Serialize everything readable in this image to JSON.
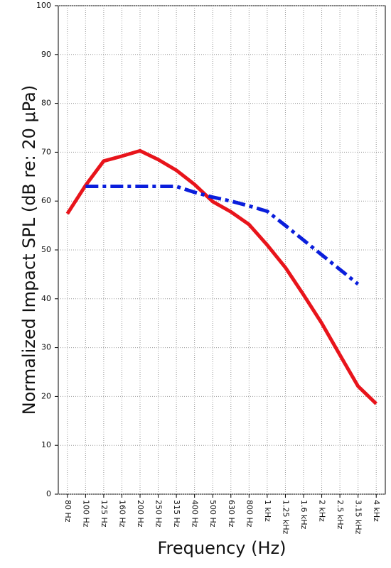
{
  "chart_data": {
    "type": "line",
    "ylabel": "Normalized Impact SPL (dB re: 20 μPa)",
    "xlabel": "Frequency (Hz)",
    "categories": [
      "80 Hz",
      "100 Hz",
      "125 Hz",
      "160 Hz",
      "200 Hz",
      "250 Hz",
      "315 Hz",
      "400 Hz",
      "500 Hz",
      "630 Hz",
      "800 Hz",
      "1 kHz",
      "1.25 kHz",
      "1.6 kHz",
      "2 kHz",
      "2.5 kHz",
      "3.15 kHz",
      "4 kHz"
    ],
    "series": [
      {
        "color": "#e8141b",
        "dash": "solid",
        "values": [
          57.4,
          63.2,
          68.2,
          69.2,
          70.3,
          68.5,
          66.3,
          63.4,
          59.9,
          57.8,
          55.2,
          51.0,
          46.4,
          40.8,
          35.0,
          28.5,
          22.1,
          18.5
        ]
      },
      {
        "color": "#0a1edc",
        "dash": "dashdot",
        "values": [
          null,
          63,
          63,
          63,
          63,
          63,
          63,
          61.8,
          60.8,
          60.0,
          59.0,
          57.9,
          55.0,
          52.0,
          49.0,
          46.0,
          43.0,
          null
        ]
      }
    ],
    "ylim": [
      0,
      100
    ],
    "yticks": [
      0,
      10,
      20,
      30,
      40,
      50,
      60,
      70,
      80,
      90,
      100
    ],
    "grid": true
  }
}
